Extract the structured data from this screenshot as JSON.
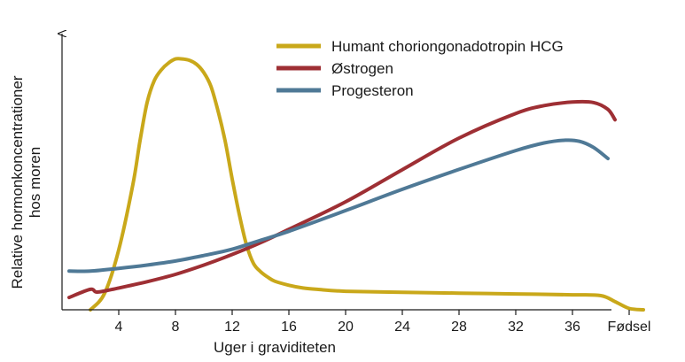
{
  "chart_data": {
    "type": "line",
    "title": "",
    "xlabel": "Uger i graviditeten",
    "ylabel_lines": [
      "Relative hormonkoncentrationer",
      "hos moren"
    ],
    "x_ticks": [
      {
        "value": 4,
        "label": "4"
      },
      {
        "value": 8,
        "label": "8"
      },
      {
        "value": 12,
        "label": "12"
      },
      {
        "value": 16,
        "label": "16"
      },
      {
        "value": 20,
        "label": "20"
      },
      {
        "value": 24,
        "label": "24"
      },
      {
        "value": 28,
        "label": "28"
      },
      {
        "value": 32,
        "label": "32"
      },
      {
        "value": 36,
        "label": "36"
      },
      {
        "value": 40,
        "label": "Fødsel"
      }
    ],
    "xlim": [
      0,
      42
    ],
    "ylim": [
      0,
      100
    ],
    "y_ticks_shown": false,
    "grid": false,
    "legend_position": "top-right",
    "series": [
      {
        "name": "Humant choriongonadotropin HCG",
        "color": "#c9a81a",
        "x": [
          2.0,
          3.0,
          4.0,
          5.0,
          5.5,
          6.0,
          6.5,
          7.0,
          7.5,
          8.0,
          8.5,
          9.0,
          9.5,
          10.0,
          10.5,
          11.0,
          11.5,
          12.0,
          12.5,
          13.0,
          13.5,
          14.0,
          14.5,
          15.0,
          16.0,
          17.0,
          18.0,
          20.0,
          24.0,
          28.0,
          32.0,
          36.0,
          38.0,
          39.0,
          40.0,
          41.0
        ],
        "values": [
          0,
          6,
          22,
          46,
          62,
          76,
          84,
          88,
          90.5,
          92,
          92,
          91.5,
          90,
          87,
          82,
          73,
          62,
          48,
          35,
          24,
          17,
          14,
          12,
          10.5,
          9,
          8,
          7.5,
          6.8,
          6.4,
          6.1,
          5.8,
          5.5,
          5.2,
          3,
          0.5,
          0
        ]
      },
      {
        "name": "Østrogen",
        "color": "#9e2f34",
        "x": [
          0.5,
          2.0,
          2.5,
          4.0,
          6.0,
          8.0,
          10.0,
          12.0,
          14.0,
          16.0,
          20.0,
          24.0,
          28.0,
          32.0,
          34.0,
          36.0,
          37.5,
          38.5,
          39.0
        ],
        "values": [
          4.5,
          7.5,
          6.5,
          8.0,
          10.3,
          13.0,
          16.4,
          20.3,
          24.6,
          29.5,
          39.6,
          51.4,
          63.0,
          72.0,
          74.9,
          76.2,
          76.0,
          73.5,
          69.7
        ]
      },
      {
        "name": "Progesteron",
        "color": "#4f7996",
        "x": [
          0.5,
          2.0,
          4.0,
          6.0,
          8.0,
          10.0,
          12.0,
          14.0,
          16.0,
          20.0,
          24.0,
          28.0,
          32.0,
          34.0,
          35.5,
          36.5,
          37.5,
          38.5
        ],
        "values": [
          14.2,
          14.2,
          15.2,
          16.4,
          17.9,
          19.9,
          22.2,
          25.5,
          28.8,
          36.4,
          44.2,
          51.5,
          58.4,
          61.2,
          62.2,
          61.8,
          59.5,
          55.5
        ]
      }
    ]
  }
}
